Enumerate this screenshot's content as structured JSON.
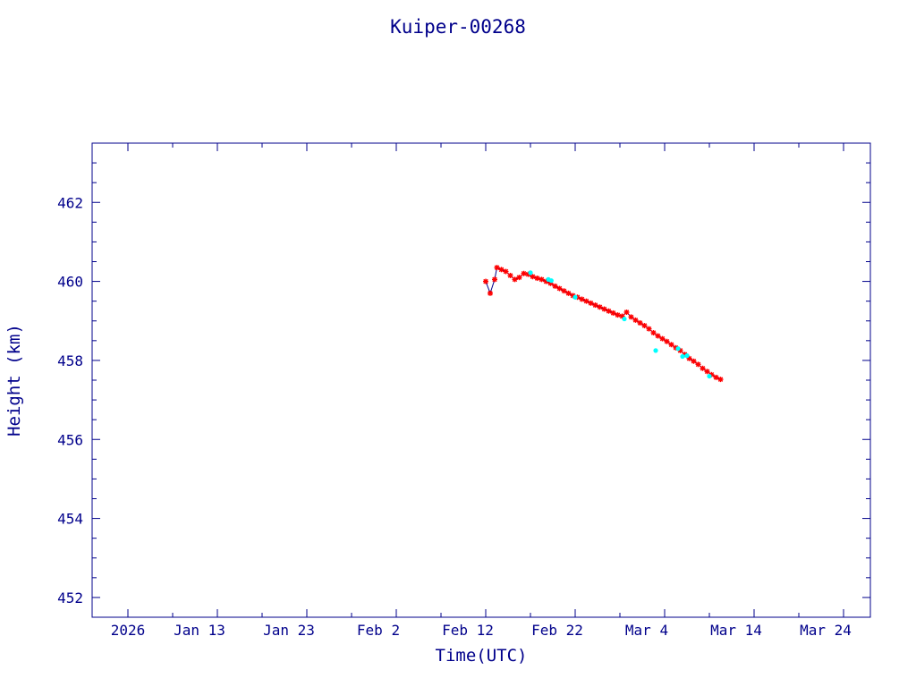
{
  "chart_data": {
    "type": "scatter",
    "title": "Kuiper-00268",
    "xlabel": "Time(UTC)",
    "ylabel": "Height (km)",
    "xlim": [
      "2026-01-01",
      "2026-03-29"
    ],
    "ylim": [
      451.5,
      463.5
    ],
    "grid": false,
    "colors": {
      "axis": "#00008b",
      "text": "#00008b",
      "line": "#00008b",
      "marker": "#ff0000",
      "marker_alt": "#00ffff"
    },
    "x_ticks": [
      {
        "date": "2026-01-05",
        "label": "2026"
      },
      {
        "date": "2026-01-13",
        "label": "Jan 13"
      },
      {
        "date": "2026-01-23",
        "label": "Jan 23"
      },
      {
        "date": "2026-02-02",
        "label": "Feb  2"
      },
      {
        "date": "2026-02-12",
        "label": "Feb 12"
      },
      {
        "date": "2026-02-22",
        "label": "Feb 22"
      },
      {
        "date": "2026-03-04",
        "label": "Mar  4"
      },
      {
        "date": "2026-03-14",
        "label": "Mar 14"
      },
      {
        "date": "2026-03-24",
        "label": "Mar 24"
      }
    ],
    "y_ticks": [
      452,
      454,
      456,
      458,
      460,
      462
    ],
    "series": [
      {
        "marker": "star",
        "color": "#ff0000",
        "line_color": "#00008b",
        "points": [
          [
            "2026-02-14T00:00",
            460.0
          ],
          [
            "2026-02-14T12:00",
            459.7
          ],
          [
            "2026-02-15T00:00",
            460.05
          ],
          [
            "2026-02-15T06:00",
            460.35
          ],
          [
            "2026-02-15T18:00",
            460.3
          ],
          [
            "2026-02-16T06:00",
            460.25
          ],
          [
            "2026-02-16T18:00",
            460.15
          ],
          [
            "2026-02-17T06:00",
            460.05
          ],
          [
            "2026-02-17T18:00",
            460.1
          ],
          [
            "2026-02-18T06:00",
            460.2
          ],
          [
            "2026-02-18T18:00",
            460.18
          ],
          [
            "2026-02-19T06:00",
            460.12
          ],
          [
            "2026-02-19T18:00",
            460.08
          ],
          [
            "2026-02-20T06:00",
            460.05
          ],
          [
            "2026-02-20T18:00",
            460.0
          ],
          [
            "2026-02-21T06:00",
            459.95
          ],
          [
            "2026-02-21T18:00",
            459.88
          ],
          [
            "2026-02-22T06:00",
            459.82
          ],
          [
            "2026-02-22T18:00",
            459.76
          ],
          [
            "2026-02-23T06:00",
            459.7
          ],
          [
            "2026-02-23T18:00",
            459.64
          ],
          [
            "2026-02-24T06:00",
            459.6
          ],
          [
            "2026-02-24T18:00",
            459.55
          ],
          [
            "2026-02-25T06:00",
            459.5
          ],
          [
            "2026-02-25T18:00",
            459.45
          ],
          [
            "2026-02-26T06:00",
            459.4
          ],
          [
            "2026-02-26T18:00",
            459.35
          ],
          [
            "2026-02-27T06:00",
            459.3
          ],
          [
            "2026-02-27T18:00",
            459.25
          ],
          [
            "2026-02-28T06:00",
            459.2
          ],
          [
            "2026-02-28T18:00",
            459.15
          ],
          [
            "2026-03-01T06:00",
            459.12
          ],
          [
            "2026-03-01T18:00",
            459.22
          ],
          [
            "2026-03-02T06:00",
            459.1
          ],
          [
            "2026-03-02T18:00",
            459.02
          ],
          [
            "2026-03-03T06:00",
            458.95
          ],
          [
            "2026-03-03T18:00",
            458.88
          ],
          [
            "2026-03-04T06:00",
            458.8
          ],
          [
            "2026-03-04T18:00",
            458.7
          ],
          [
            "2026-03-05T06:00",
            458.62
          ],
          [
            "2026-03-05T18:00",
            458.55
          ],
          [
            "2026-03-06T06:00",
            458.48
          ],
          [
            "2026-03-06T18:00",
            458.4
          ],
          [
            "2026-03-07T06:00",
            458.32
          ],
          [
            "2026-03-07T18:00",
            458.25
          ],
          [
            "2026-03-08T06:00",
            458.15
          ],
          [
            "2026-03-08T18:00",
            458.05
          ],
          [
            "2026-03-09T06:00",
            457.98
          ],
          [
            "2026-03-09T18:00",
            457.9
          ],
          [
            "2026-03-10T06:00",
            457.8
          ],
          [
            "2026-03-10T18:00",
            457.72
          ],
          [
            "2026-03-11T06:00",
            457.64
          ],
          [
            "2026-03-11T18:00",
            457.57
          ],
          [
            "2026-03-12T06:00",
            457.52
          ]
        ]
      },
      {
        "marker": "dot",
        "color": "#00ffff",
        "points": [
          [
            "2026-02-19T00:00",
            460.22
          ],
          [
            "2026-02-21T00:00",
            460.05
          ],
          [
            "2026-02-21T08:00",
            460.02
          ],
          [
            "2026-02-24T00:00",
            459.6
          ],
          [
            "2026-03-01T12:00",
            459.05
          ],
          [
            "2026-03-05T00:00",
            458.25
          ],
          [
            "2026-03-07T12:00",
            458.3
          ],
          [
            "2026-03-08T00:00",
            458.1
          ],
          [
            "2026-03-08T12:00",
            458.12
          ],
          [
            "2026-03-11T00:00",
            457.6
          ]
        ]
      }
    ]
  }
}
